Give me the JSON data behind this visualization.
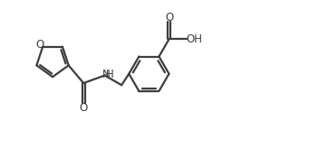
{
  "background_color": "#ffffff",
  "line_color": "#3d3d3d",
  "line_width": 1.6,
  "font_size": 8.5,
  "figsize": [
    3.62,
    1.76
  ],
  "dpi": 100,
  "xlim": [
    0,
    10
  ],
  "ylim": [
    0,
    4.9
  ]
}
